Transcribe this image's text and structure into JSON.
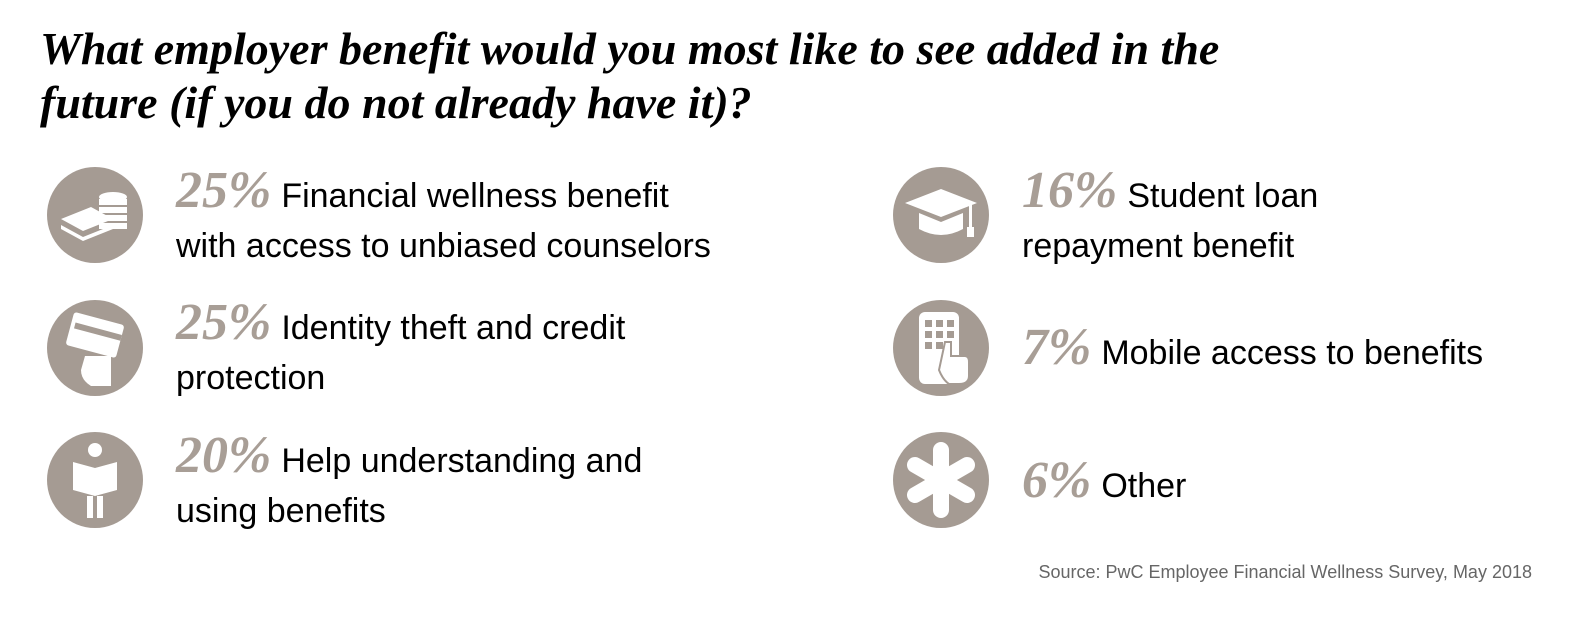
{
  "header": {
    "title_lines": [
      "What employer benefit would you most like to see added in the",
      "future (if you do not already have it)?"
    ]
  },
  "items": [
    {
      "percent": "25%",
      "lines": [
        "Financial wellness benefit",
        "with access to unbiased counselors"
      ]
    },
    {
      "percent": "25%",
      "lines": [
        "Identity theft and credit",
        "protection"
      ]
    },
    {
      "percent": "20%",
      "lines": [
        "Help understanding and",
        "using benefits"
      ]
    },
    {
      "percent": "16%",
      "lines": [
        "Student loan",
        "repayment benefit"
      ]
    },
    {
      "percent": "7%",
      "lines": [
        "Mobile access to benefits"
      ]
    },
    {
      "percent": "6%",
      "lines": [
        "Other"
      ]
    }
  ],
  "footer": {
    "source": "Source: PwC Employee Financial Wellness Survey, May 2018"
  }
}
